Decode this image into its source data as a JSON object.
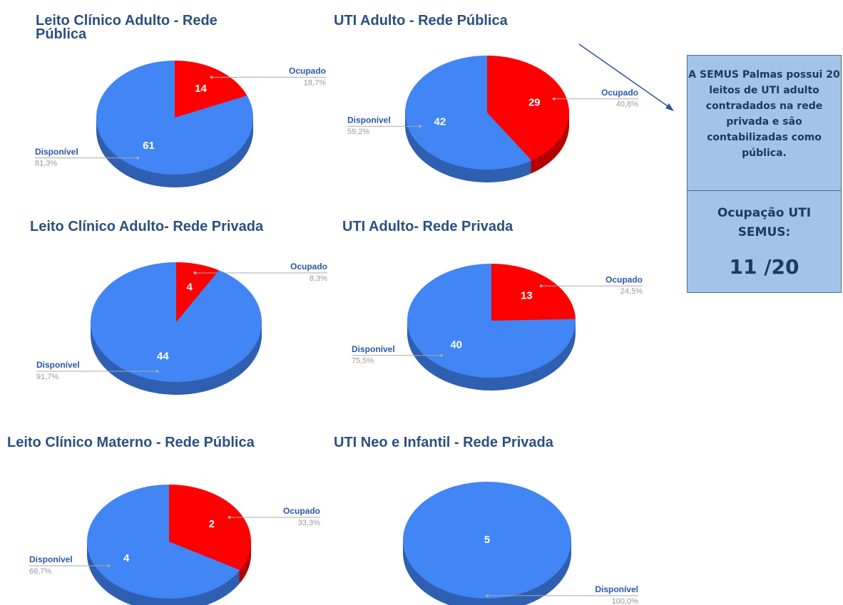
{
  "chart_data": [
    {
      "type": "pie",
      "title": "Leito Clínico Adulto - Rede Pública",
      "categories": [
        "Ocupado",
        "Disponível"
      ],
      "values": [
        14,
        61
      ],
      "percentages": [
        "18,7%",
        "81,3%"
      ],
      "colors": [
        "#ff0000",
        "#4285f4"
      ]
    },
    {
      "type": "pie",
      "title": "UTI Adulto - Rede Pública",
      "categories": [
        "Ocupado",
        "Disponível"
      ],
      "values": [
        29,
        42
      ],
      "percentages": [
        "40,8%",
        "59,2%"
      ],
      "colors": [
        "#ff0000",
        "#4285f4"
      ]
    },
    {
      "type": "pie",
      "title": "Leito Clínico Adulto- Rede Privada",
      "categories": [
        "Ocupado",
        "Disponível"
      ],
      "values": [
        4,
        44
      ],
      "percentages": [
        "8,3%",
        "91,7%"
      ],
      "colors": [
        "#ff0000",
        "#4285f4"
      ]
    },
    {
      "type": "pie",
      "title": "UTI Adulto- Rede Privada",
      "categories": [
        "Ocupado",
        "Disponível"
      ],
      "values": [
        13,
        40
      ],
      "percentages": [
        "24,5%",
        "75,5%"
      ],
      "colors": [
        "#ff0000",
        "#4285f4"
      ]
    },
    {
      "type": "pie",
      "title": "Leito Clínico Materno - Rede Pública",
      "categories": [
        "Ocupado",
        "Disponível"
      ],
      "values": [
        2,
        4
      ],
      "percentages": [
        "33,3%",
        "66,7%"
      ],
      "colors": [
        "#ff0000",
        "#4285f4"
      ]
    },
    {
      "type": "pie",
      "title": "UTI Neo e Infantil - Rede Privada",
      "categories": [
        "Disponível"
      ],
      "values": [
        5
      ],
      "percentages": [
        "100,0%"
      ],
      "colors": [
        "#4285f4"
      ]
    }
  ],
  "note": {
    "text": "A SEMUS Palmas possui 20 leitos de UTI adulto contradados na rede privada e são contabilizadas como pública.",
    "heading": "Ocupação UTI SEMUS:",
    "value": "11 /20"
  }
}
